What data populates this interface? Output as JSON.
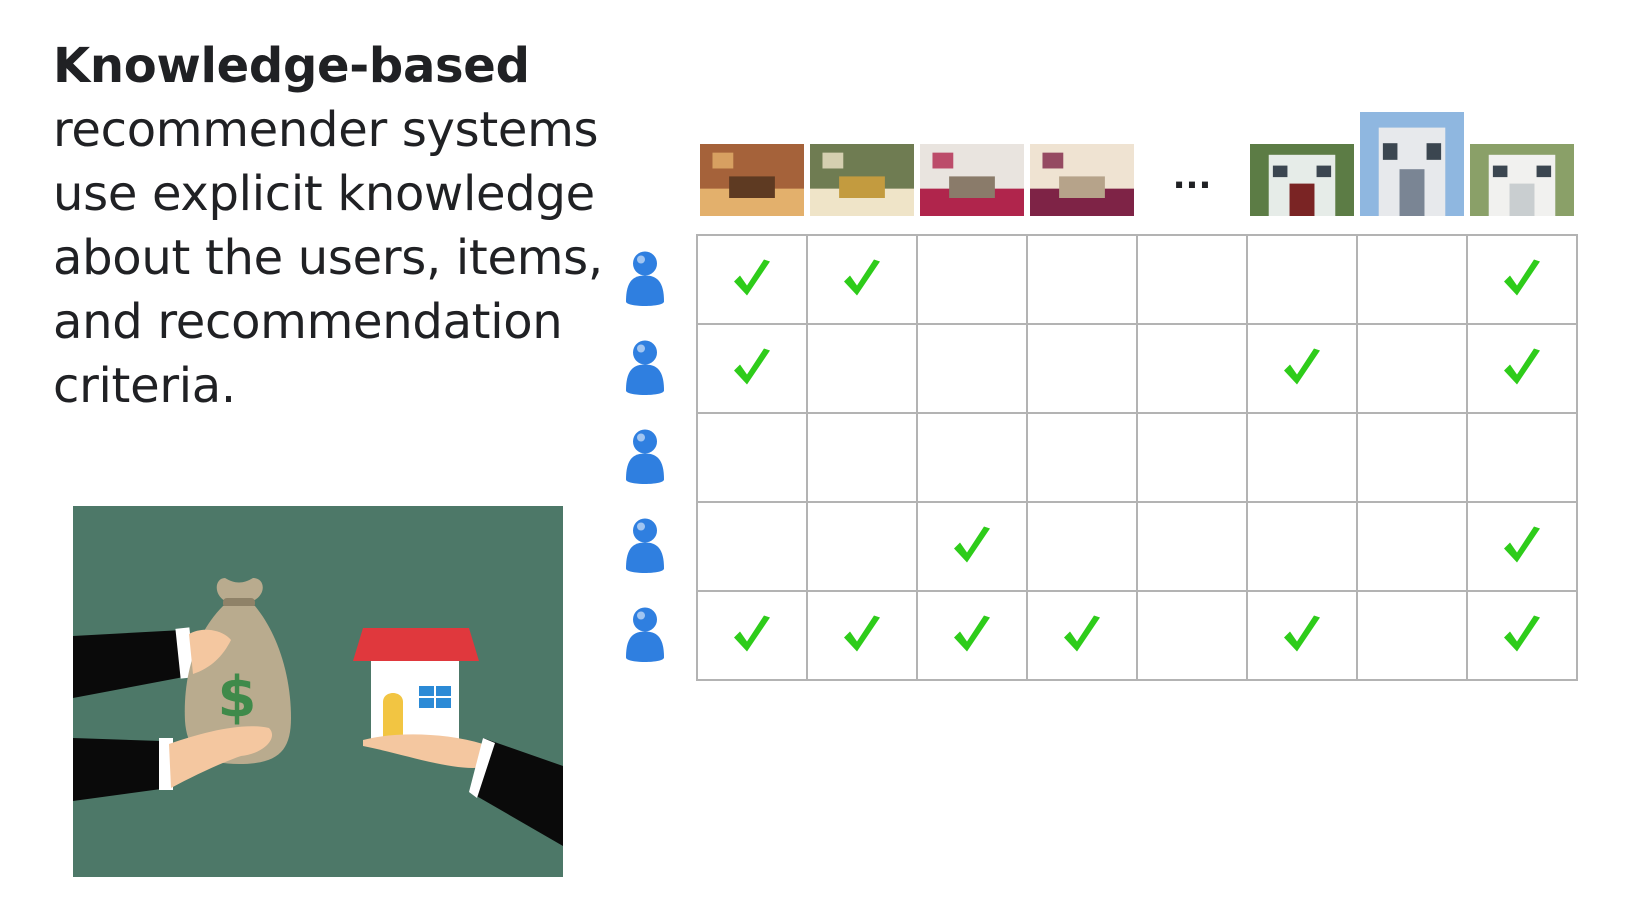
{
  "heading": "Knowledge-based",
  "body_lines": [
    "recommender systems",
    "use explicit knowledge",
    "about the users, items,",
    "and recommendation",
    "criteria."
  ],
  "items": [
    {
      "icon": "lobby-photo-icon",
      "kind": "interior"
    },
    {
      "icon": "entrance-photo-icon",
      "kind": "entrance"
    },
    {
      "icon": "living-room-photo-icon",
      "kind": "living"
    },
    {
      "icon": "bedroom-photo-icon",
      "kind": "bedroom"
    },
    {
      "icon": "ellipsis",
      "kind": "ellipsis"
    },
    {
      "icon": "house-front-photo-icon",
      "kind": "house1"
    },
    {
      "icon": "victorian-house-photo-icon",
      "kind": "house2"
    },
    {
      "icon": "white-house-photo-icon",
      "kind": "house3"
    }
  ],
  "ellipsis": "...",
  "matrix": [
    [
      1,
      1,
      0,
      0,
      0,
      0,
      0,
      1
    ],
    [
      1,
      0,
      0,
      0,
      0,
      1,
      0,
      1
    ],
    [
      0,
      0,
      0,
      0,
      0,
      0,
      0,
      0
    ],
    [
      0,
      0,
      1,
      0,
      0,
      0,
      0,
      1
    ],
    [
      1,
      1,
      1,
      1,
      0,
      1,
      0,
      1
    ]
  ],
  "colors": {
    "check": "#2ecc1a",
    "user": "#2f7fe0",
    "grid": "#b3b3b3",
    "illustration_bg": "#4d7868",
    "roof": "#e0383d",
    "money_bag": "#b9ab8e"
  },
  "illustration": {
    "bag_symbol": "$",
    "icons": [
      "money-bag-icon",
      "house-icon",
      "hand-icon"
    ]
  }
}
